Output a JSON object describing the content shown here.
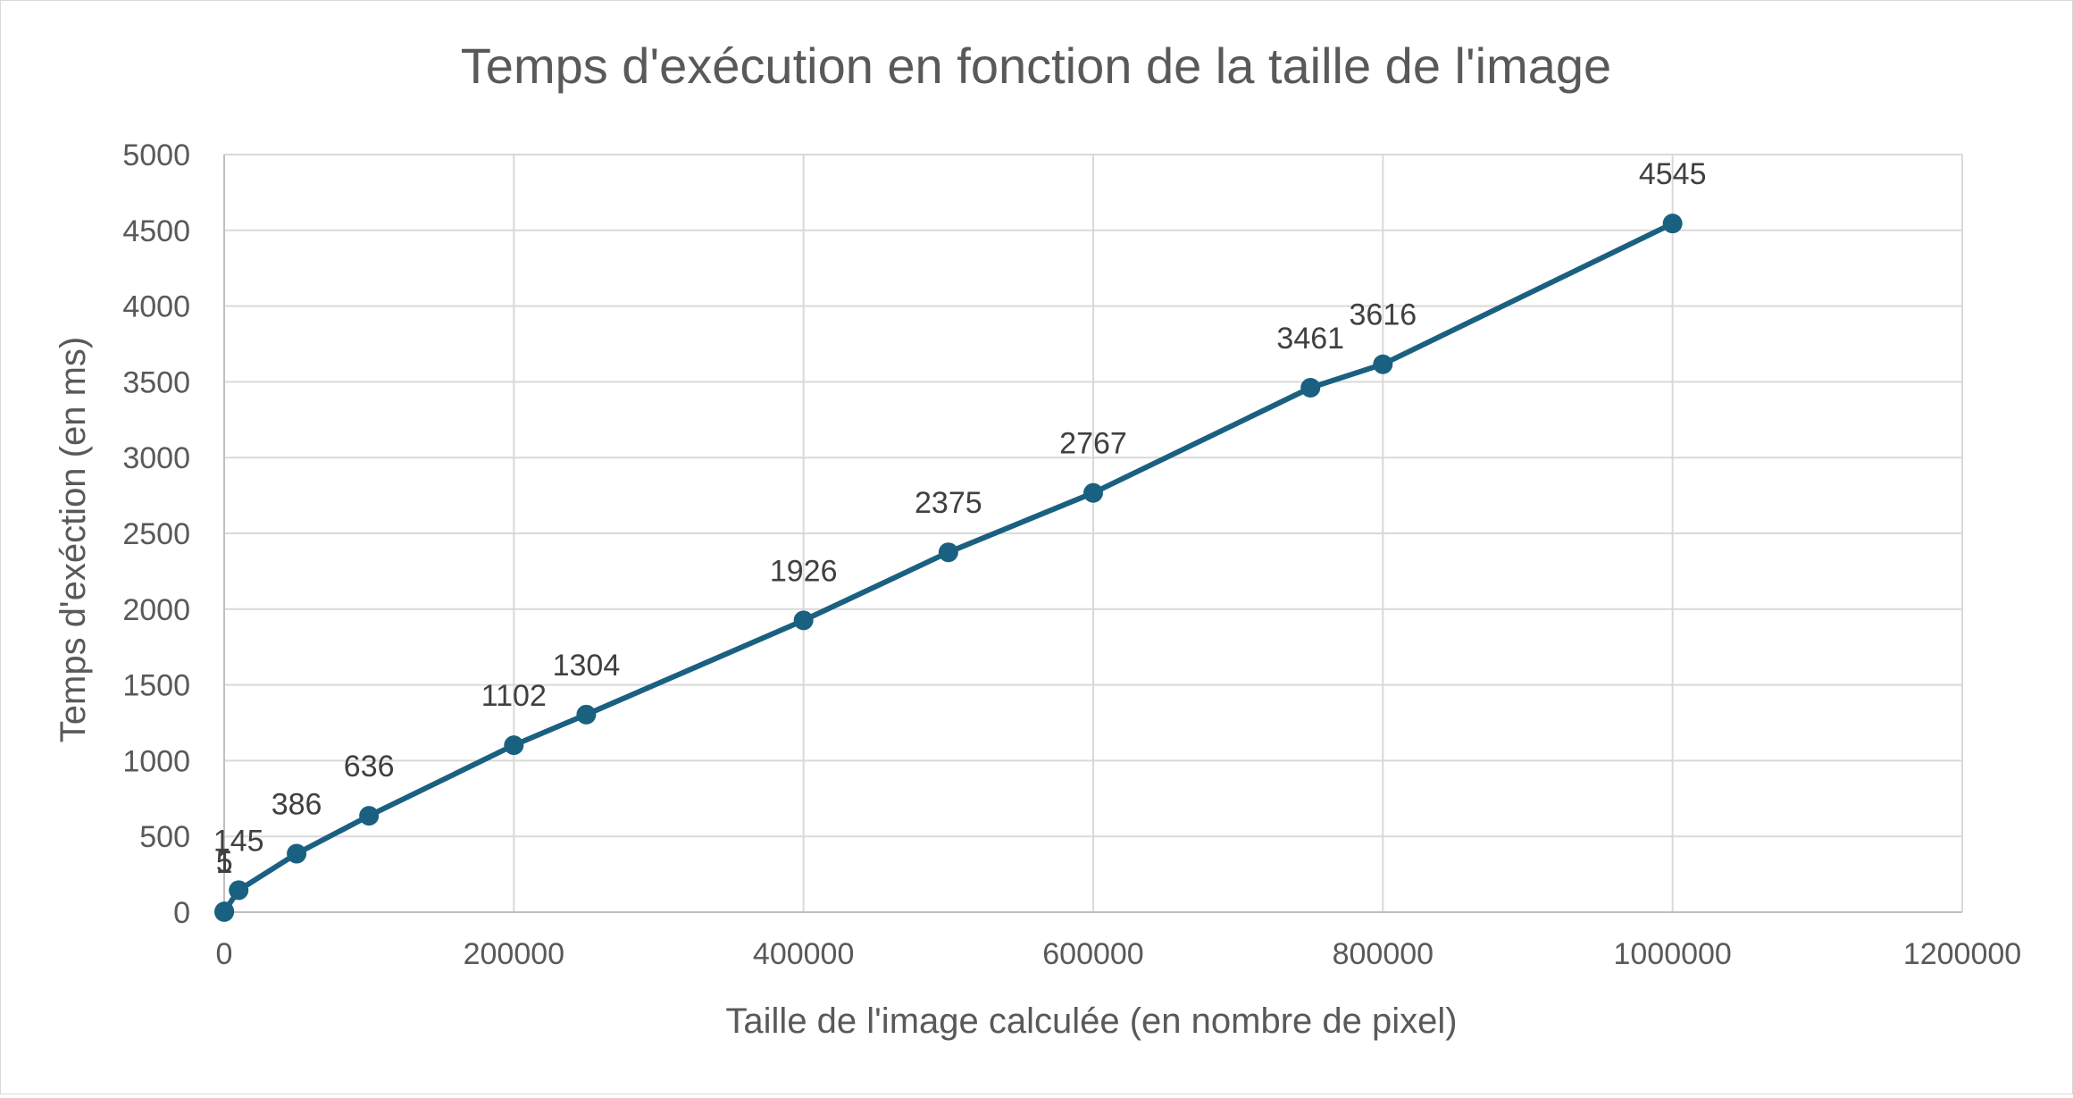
{
  "chart_data": {
    "type": "line",
    "title": "Temps d'exécution en fonction de la taille de l'image",
    "xlabel": "Taille de l'image calculée (en nombre de pixel)",
    "ylabel": "Temps d'exéction (en ms)",
    "xlim": [
      0,
      1200000
    ],
    "ylim": [
      0,
      5000
    ],
    "xticks": [
      0,
      200000,
      400000,
      600000,
      800000,
      1000000,
      1200000
    ],
    "yticks": [
      0,
      500,
      1000,
      1500,
      2000,
      2500,
      3000,
      3500,
      4000,
      4500,
      5000
    ],
    "xtick_labels": [
      "0",
      "200000",
      "400000",
      "600000",
      "800000",
      "1000000",
      "1200000"
    ],
    "ytick_labels": [
      "0",
      "500",
      "1000",
      "1500",
      "2000",
      "2500",
      "3000",
      "3500",
      "4000",
      "4500",
      "5000"
    ],
    "grid": true,
    "legend": "none",
    "color": "#1a6080",
    "series": [
      {
        "x": [
          1,
          100,
          10000,
          50000,
          100000,
          200000,
          250000,
          400000,
          500000,
          600000,
          750000,
          800000,
          1000000
        ],
        "y": [
          1,
          5,
          145,
          386,
          636,
          1102,
          1304,
          1926,
          2375,
          2767,
          3461,
          3616,
          4545
        ],
        "data_labels": [
          "1",
          "5",
          "145",
          "386",
          "636",
          "1102",
          "1304",
          "1926",
          "2375",
          "2767",
          "3461",
          "3616",
          "4545"
        ]
      }
    ]
  }
}
